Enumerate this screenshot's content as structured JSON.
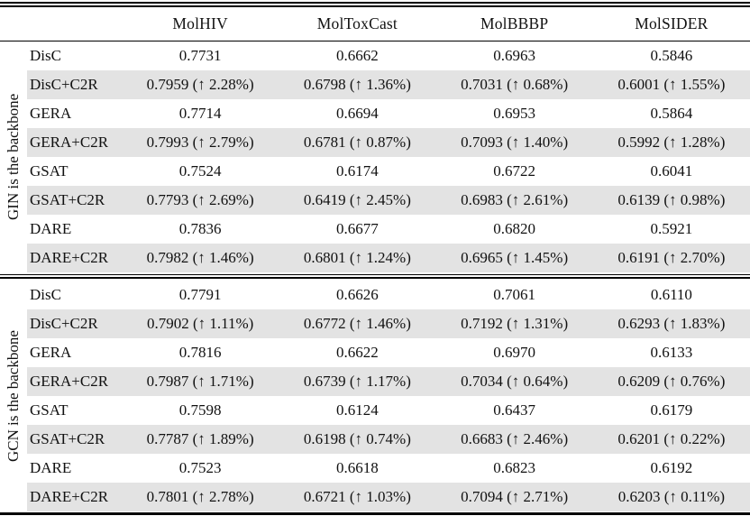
{
  "table": {
    "columns": [
      "MolHIV",
      "MolToxCast",
      "MolBBBP",
      "MolSIDER"
    ],
    "highlight_color": "#e3e3e3",
    "sections": [
      {
        "label": "GIN is the backbone",
        "rows": [
          {
            "method": "DisC",
            "highlight": false,
            "values": [
              "0.7731",
              "0.6662",
              "0.6963",
              "0.5846"
            ]
          },
          {
            "method": "DisC+C2R",
            "highlight": true,
            "values": [
              "0.7959 (↑ 2.28%)",
              "0.6798 (↑ 1.36%)",
              "0.7031 (↑ 0.68%)",
              "0.6001 (↑ 1.55%)"
            ]
          },
          {
            "method": "GERA",
            "highlight": false,
            "values": [
              "0.7714",
              "0.6694",
              "0.6953",
              "0.5864"
            ]
          },
          {
            "method": "GERA+C2R",
            "highlight": true,
            "values": [
              "0.7993 (↑ 2.79%)",
              "0.6781 (↑ 0.87%)",
              "0.7093 (↑ 1.40%)",
              "0.5992 (↑ 1.28%)"
            ]
          },
          {
            "method": "GSAT",
            "highlight": false,
            "values": [
              "0.7524",
              "0.6174",
              "0.6722",
              "0.6041"
            ]
          },
          {
            "method": "GSAT+C2R",
            "highlight": true,
            "values": [
              "0.7793 (↑ 2.69%)",
              "0.6419 (↑ 2.45%)",
              "0.6983 (↑ 2.61%)",
              "0.6139 (↑ 0.98%)"
            ]
          },
          {
            "method": "DARE",
            "highlight": false,
            "values": [
              "0.7836",
              "0.6677",
              "0.6820",
              "0.5921"
            ]
          },
          {
            "method": "DARE+C2R",
            "highlight": true,
            "values": [
              "0.7982 (↑ 1.46%)",
              "0.6801 (↑ 1.24%)",
              "0.6965 (↑ 1.45%)",
              "0.6191 (↑ 2.70%)"
            ]
          }
        ]
      },
      {
        "label": "GCN is the backbone",
        "rows": [
          {
            "method": "DisC",
            "highlight": false,
            "values": [
              "0.7791",
              "0.6626",
              "0.7061",
              "0.6110"
            ]
          },
          {
            "method": "DisC+C2R",
            "highlight": true,
            "values": [
              "0.7902 (↑ 1.11%)",
              "0.6772 (↑ 1.46%)",
              "0.7192 (↑ 1.31%)",
              "0.6293 (↑ 1.83%)"
            ]
          },
          {
            "method": "GERA",
            "highlight": false,
            "values": [
              "0.7816",
              "0.6622",
              "0.6970",
              "0.6133"
            ]
          },
          {
            "method": "GERA+C2R",
            "highlight": true,
            "values": [
              "0.7987 (↑ 1.71%)",
              "0.6739 (↑ 1.17%)",
              "0.7034 (↑ 0.64%)",
              "0.6209 (↑ 0.76%)"
            ]
          },
          {
            "method": "GSAT",
            "highlight": false,
            "values": [
              "0.7598",
              "0.6124",
              "0.6437",
              "0.6179"
            ]
          },
          {
            "method": "GSAT+C2R",
            "highlight": true,
            "values": [
              "0.7787 (↑ 1.89%)",
              "0.6198 (↑ 0.74%)",
              "0.6683 (↑ 2.46%)",
              "0.6201 (↑ 0.22%)"
            ]
          },
          {
            "method": "DARE",
            "highlight": false,
            "values": [
              "0.7523",
              "0.6618",
              "0.6823",
              "0.6192"
            ]
          },
          {
            "method": "DARE+C2R",
            "highlight": true,
            "values": [
              "0.7801 (↑ 2.78%)",
              "0.6721 (↑ 1.03%)",
              "0.7094 (↑ 2.71%)",
              "0.6203 (↑ 0.11%)"
            ]
          }
        ]
      }
    ]
  }
}
